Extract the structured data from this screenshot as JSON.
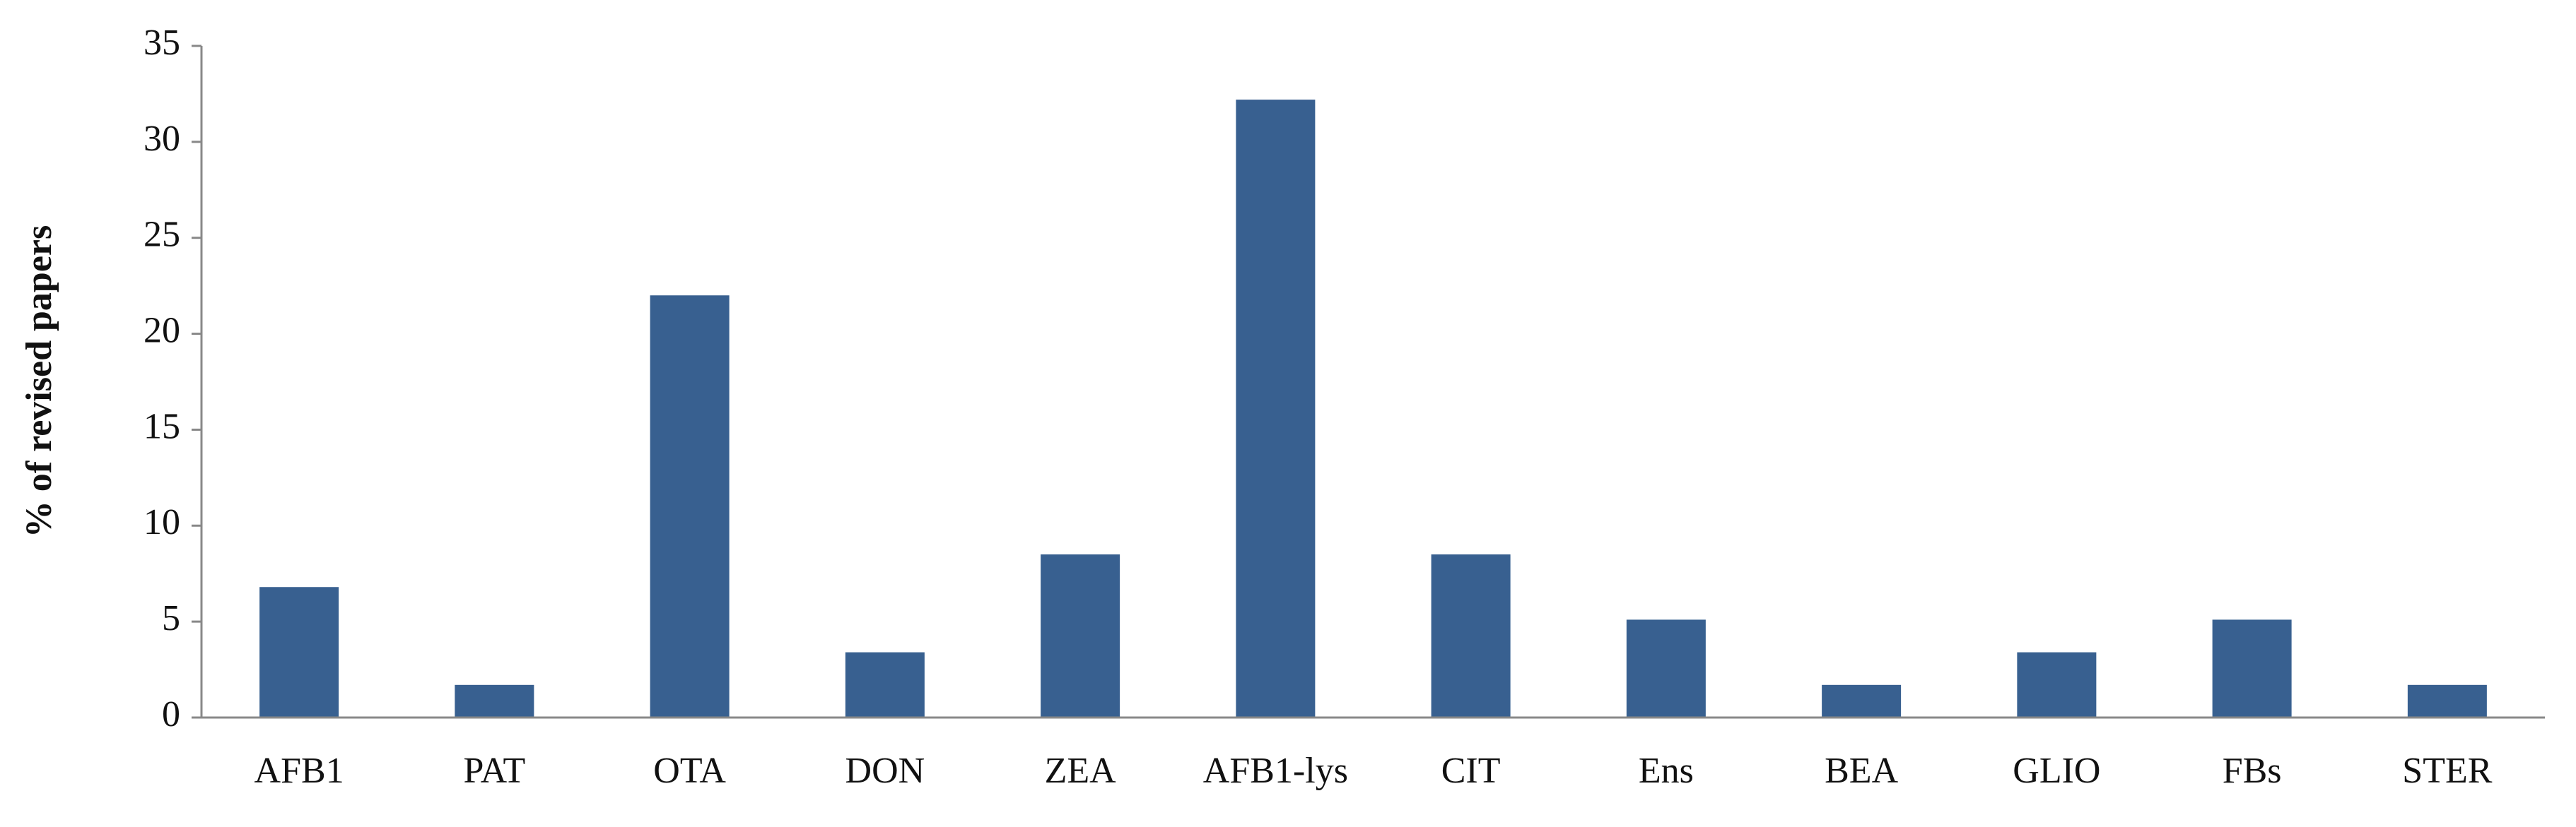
{
  "chart_data": {
    "type": "bar",
    "y_label": "% of revised papers",
    "categories": [
      "AFB1",
      "PAT",
      "OTA",
      "DON",
      "ZEA",
      "AFB1-lys",
      "CIT",
      "Ens",
      "BEA",
      "GLIO",
      "FBs",
      "STER"
    ],
    "values": [
      6.8,
      1.7,
      22.0,
      3.4,
      8.5,
      32.2,
      8.5,
      5.1,
      1.7,
      3.4,
      5.1,
      1.7
    ],
    "color": "#386090",
    "ylim": [
      0,
      35
    ],
    "yticks": [
      0,
      5,
      10,
      15,
      20,
      25,
      30,
      35
    ],
    "grid": false
  }
}
